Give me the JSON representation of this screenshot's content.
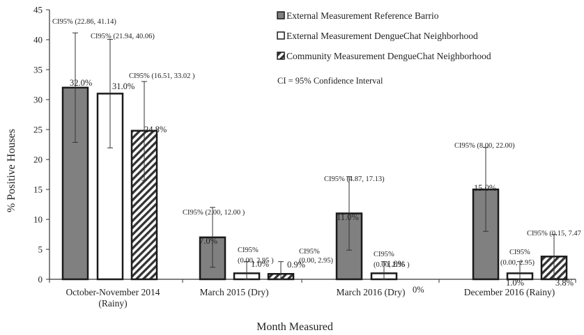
{
  "chart_data": {
    "type": "bar",
    "ylabel": "% Positive Houses",
    "xlabel": "Month Measured",
    "ylim": [
      0,
      45
    ],
    "yticks": [
      0,
      5,
      10,
      15,
      20,
      25,
      30,
      35,
      40,
      45
    ],
    "grid": false,
    "legend_position": "top-right",
    "note": "CI = 95% Confidence Interval",
    "categories": [
      [
        "October-November 2014",
        "(Rainy)"
      ],
      [
        "March 2015 (Dry)"
      ],
      [
        "March 2016 (Dry)"
      ],
      [
        "December 2016 (Rainy)"
      ]
    ],
    "series": [
      {
        "name": "External Measurement Reference Barrio",
        "fill": "#808080",
        "pattern": "solid",
        "values": [
          32.0,
          7.0,
          11.0,
          15.0
        ],
        "labels": [
          "32.0%",
          "7.0%",
          "11.0%",
          "15.0%"
        ],
        "ci": [
          [
            22.86,
            41.14
          ],
          [
            2.0,
            12.0
          ],
          [
            4.87,
            17.13
          ],
          [
            8.0,
            22.0
          ]
        ],
        "ci_text": [
          [
            "CI95% (22.86, 41.14)"
          ],
          [
            "CI95% (2.00, 12.00 )"
          ],
          [
            "CI95% (4.87, 17.13)"
          ],
          [
            "CI95% (8.00, 22.00)"
          ]
        ]
      },
      {
        "name": "External Measurement DengueChat Neighborhood",
        "fill": "#ffffff",
        "pattern": "solid",
        "values": [
          31.0,
          1.0,
          1.0,
          1.0
        ],
        "labels": [
          "31.0%",
          "1.0%",
          "1.0%",
          "1.0%"
        ],
        "ci": [
          [
            21.94,
            40.06
          ],
          [
            0.0,
            2.95
          ],
          [
            0.0,
            2.95
          ],
          [
            0.0,
            2.95
          ]
        ],
        "ci_text": [
          [
            "CI95% (21.94, 40.06)"
          ],
          [
            "CI95%",
            "(0.00, 2.95 )"
          ],
          [
            "CI95%",
            "(0.00, 2.95 )"
          ],
          [
            "CI95%",
            "(0.00, 2.95)"
          ]
        ]
      },
      {
        "name": "Community Measurement DengueChat Neighborhood",
        "fill": "#ffffff",
        "pattern": "diagonal-hatch",
        "values": [
          24.8,
          0.9,
          0.0,
          3.8
        ],
        "labels": [
          "24.8%",
          "0.9%",
          "0%",
          "3.8%"
        ],
        "ci": [
          [
            16.51,
            33.02
          ],
          [
            0.0,
            2.95
          ],
          null,
          [
            0.15,
            7.47
          ]
        ],
        "ci_text": [
          [
            "CI95% (16.51, 33.02 )"
          ],
          [
            "CI95%",
            "(0.00, 2.95)"
          ],
          null,
          [
            "CI95% (0.15, 7.47"
          ]
        ]
      }
    ]
  }
}
